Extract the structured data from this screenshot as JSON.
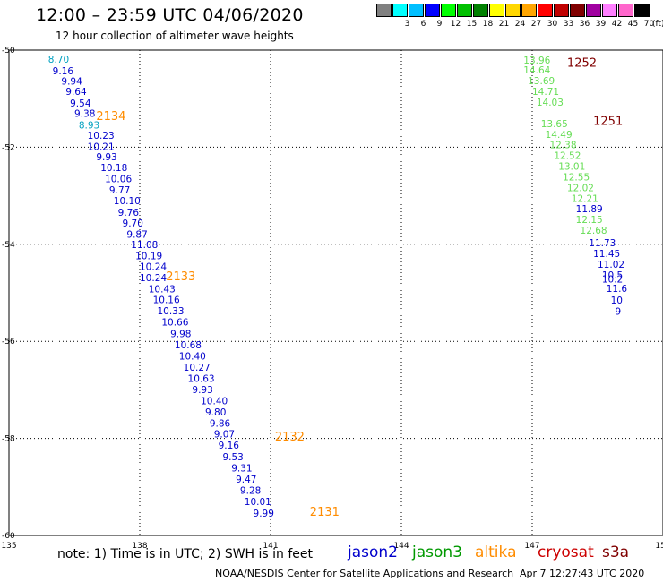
{
  "header": {
    "title": "12:00 – 23:59 UTC 04/06/2020",
    "subtitle": "12 hour collection of altimeter wave heights"
  },
  "scale": {
    "colors": [
      "#808080",
      "#00ffff",
      "#00bfff",
      "#0000ff",
      "#00ff00",
      "#00c000",
      "#008000",
      "#ffff00",
      "#ffd700",
      "#ffa500",
      "#ff0000",
      "#c00000",
      "#800000",
      "#a000a0",
      "#ff80ff",
      "#ff66cc",
      "#000000"
    ],
    "labels": [
      "",
      "3",
      "6",
      "9",
      "12",
      "15",
      "18",
      "21",
      "24",
      "27",
      "30",
      "33",
      "36",
      "39",
      "42",
      "45",
      "70"
    ],
    "unit": "(ft)"
  },
  "chart_data": {
    "type": "scatter",
    "title": "12:00 – 23:59 UTC 04/06/2020",
    "subtitle": "12 hour collection of altimeter wave heights",
    "xlabel": "",
    "ylabel": "",
    "xlim": [
      135,
      150
    ],
    "ylim": [
      -60,
      -50
    ],
    "grid": true,
    "x_ticks": [
      "135",
      "138",
      "141",
      "144",
      "147",
      "150"
    ],
    "x_tick_values": [
      135,
      138,
      141,
      144,
      147,
      150
    ],
    "y_ticks": [
      "-50",
      "-52",
      "-54",
      "-56",
      "-58",
      "-60"
    ],
    "y_tick_values": [
      -50,
      -52,
      -54,
      -56,
      -58,
      -60
    ],
    "colors": {
      "jason2": "#0000cc",
      "jason3": "#009900",
      "altika": "#ff8c00",
      "cryosat": "#cc0000",
      "s3a": "#800000",
      "light_blue": "#00a0c0",
      "light_green": "#66dd55"
    },
    "series": [
      {
        "name": "jason2",
        "color": "#0000cc",
        "points": [
          {
            "lon": 135.9,
            "lat": -50.18,
            "swh": "8.70",
            "c": "#00a0c0"
          },
          {
            "lon": 136.0,
            "lat": -50.42,
            "swh": "9.16"
          },
          {
            "lon": 136.2,
            "lat": -50.64,
            "swh": "9.94"
          },
          {
            "lon": 136.3,
            "lat": -50.85,
            "swh": "9.64"
          },
          {
            "lon": 136.4,
            "lat": -51.09,
            "swh": "9.54"
          },
          {
            "lon": 136.5,
            "lat": -51.3,
            "swh": "9.38"
          },
          {
            "lon": 136.6,
            "lat": -51.54,
            "swh": "8.93",
            "c": "#00a0c0"
          },
          {
            "lon": 136.8,
            "lat": -51.75,
            "swh": "10.23"
          },
          {
            "lon": 136.8,
            "lat": -51.98,
            "swh": "10.21"
          },
          {
            "lon": 137.0,
            "lat": -52.2,
            "swh": "9.93"
          },
          {
            "lon": 137.1,
            "lat": -52.42,
            "swh": "10.18"
          },
          {
            "lon": 137.2,
            "lat": -52.65,
            "swh": "10.06"
          },
          {
            "lon": 137.3,
            "lat": -52.88,
            "swh": "9.77"
          },
          {
            "lon": 137.4,
            "lat": -53.1,
            "swh": "10.10"
          },
          {
            "lon": 137.5,
            "lat": -53.34,
            "swh": "9.76"
          },
          {
            "lon": 137.6,
            "lat": -53.56,
            "swh": "9.70"
          },
          {
            "lon": 137.7,
            "lat": -53.79,
            "swh": "9.87"
          },
          {
            "lon": 137.8,
            "lat": -54.0,
            "swh": "11.08"
          },
          {
            "lon": 137.9,
            "lat": -54.23,
            "swh": "10.19"
          },
          {
            "lon": 138.0,
            "lat": -54.46,
            "swh": "10.24"
          },
          {
            "lon": 138.0,
            "lat": -54.69,
            "swh": "10.24"
          },
          {
            "lon": 138.2,
            "lat": -54.92,
            "swh": "10.43"
          },
          {
            "lon": 138.3,
            "lat": -55.14,
            "swh": "10.16"
          },
          {
            "lon": 138.4,
            "lat": -55.37,
            "swh": "10.33"
          },
          {
            "lon": 138.5,
            "lat": -55.6,
            "swh": "10.66"
          },
          {
            "lon": 138.7,
            "lat": -55.84,
            "swh": "9.98"
          },
          {
            "lon": 138.8,
            "lat": -56.07,
            "swh": "10.68"
          },
          {
            "lon": 138.9,
            "lat": -56.3,
            "swh": "10.40"
          },
          {
            "lon": 139.0,
            "lat": -56.53,
            "swh": "10.27"
          },
          {
            "lon": 139.1,
            "lat": -56.76,
            "swh": "10.63"
          },
          {
            "lon": 139.2,
            "lat": -56.99,
            "swh": "9.93"
          },
          {
            "lon": 139.4,
            "lat": -57.22,
            "swh": "10.40"
          },
          {
            "lon": 139.5,
            "lat": -57.45,
            "swh": "9.80"
          },
          {
            "lon": 139.6,
            "lat": -57.68,
            "swh": "9.86"
          },
          {
            "lon": 139.7,
            "lat": -57.91,
            "swh": "9.07"
          },
          {
            "lon": 139.8,
            "lat": -58.14,
            "swh": "9.16"
          },
          {
            "lon": 139.9,
            "lat": -58.38,
            "swh": "9.53"
          },
          {
            "lon": 140.1,
            "lat": -58.61,
            "swh": "9.31"
          },
          {
            "lon": 140.2,
            "lat": -58.84,
            "swh": "9.47"
          },
          {
            "lon": 140.3,
            "lat": -59.07,
            "swh": "9.28"
          },
          {
            "lon": 140.4,
            "lat": -59.3,
            "swh": "10.01"
          },
          {
            "lon": 140.6,
            "lat": -59.54,
            "swh": "9.99"
          }
        ]
      },
      {
        "name": "jason3",
        "color": "#009900",
        "points": [
          {
            "lon": 146.8,
            "lat": -50.2,
            "swh": "13.96",
            "c": "#66dd55"
          },
          {
            "lon": 146.8,
            "lat": -50.41,
            "swh": "14.64",
            "c": "#66dd55"
          },
          {
            "lon": 146.9,
            "lat": -50.63,
            "swh": "13.69",
            "c": "#66dd55"
          },
          {
            "lon": 147.0,
            "lat": -50.85,
            "swh": "14.71",
            "c": "#66dd55"
          },
          {
            "lon": 147.1,
            "lat": -51.07,
            "swh": "14.03",
            "c": "#66dd55"
          },
          {
            "lon": 147.2,
            "lat": -51.51,
            "swh": "13.65",
            "c": "#66dd55"
          },
          {
            "lon": 147.3,
            "lat": -51.73,
            "swh": "14.49",
            "c": "#66dd55"
          },
          {
            "lon": 147.4,
            "lat": -51.95,
            "swh": "12.38",
            "c": "#66dd55"
          },
          {
            "lon": 147.5,
            "lat": -52.17,
            "swh": "12.52",
            "c": "#66dd55"
          },
          {
            "lon": 147.6,
            "lat": -52.39,
            "swh": "13.01",
            "c": "#66dd55"
          },
          {
            "lon": 147.7,
            "lat": -52.61,
            "swh": "12.55",
            "c": "#66dd55"
          },
          {
            "lon": 147.8,
            "lat": -52.83,
            "swh": "12.02",
            "c": "#66dd55"
          },
          {
            "lon": 147.9,
            "lat": -53.05,
            "swh": "12.21",
            "c": "#66dd55"
          },
          {
            "lon": 148.0,
            "lat": -53.27,
            "swh": "11.89",
            "c": "#0000cc"
          },
          {
            "lon": 148.0,
            "lat": -53.49,
            "swh": "12.15",
            "c": "#66dd55"
          },
          {
            "lon": 148.1,
            "lat": -53.71,
            "swh": "12.68",
            "c": "#66dd55"
          },
          {
            "lon": 148.3,
            "lat": -53.97,
            "swh": "11.73",
            "c": "#0000cc"
          },
          {
            "lon": 148.4,
            "lat": -54.19,
            "swh": "11.45",
            "c": "#0000cc"
          },
          {
            "lon": 148.5,
            "lat": -54.41,
            "swh": "11.02",
            "c": "#0000cc"
          },
          {
            "lon": 148.6,
            "lat": -54.63,
            "swh": "10.5",
            "c": "#0000cc"
          },
          {
            "lon": 148.6,
            "lat": -54.71,
            "swh": "10.2",
            "c": "#0000cc"
          },
          {
            "lon": 148.7,
            "lat": -54.91,
            "swh": "11.6",
            "c": "#0000cc"
          },
          {
            "lon": 148.8,
            "lat": -55.15,
            "swh": "10",
            "c": "#0000cc"
          },
          {
            "lon": 148.9,
            "lat": -55.38,
            "swh": "9",
            "c": "#0000cc"
          }
        ]
      }
    ],
    "pass_labels": [
      {
        "text": "2134",
        "lon": 137.0,
        "lat": -51.35,
        "color": "#ff8c00"
      },
      {
        "text": "2133",
        "lon": 138.6,
        "lat": -54.65,
        "color": "#ff8c00"
      },
      {
        "text": "2132",
        "lon": 141.1,
        "lat": -57.95,
        "color": "#ff8c00"
      },
      {
        "text": "2131",
        "lon": 141.9,
        "lat": -59.5,
        "color": "#ff8c00"
      },
      {
        "text": "1252",
        "lon": 147.8,
        "lat": -50.25,
        "color": "#800000"
      },
      {
        "text": "1251",
        "lon": 148.4,
        "lat": -51.45,
        "color": "#800000"
      }
    ]
  },
  "legend": {
    "note": "note: 1) Time is in UTC; 2) SWH is in feet",
    "satellites": [
      {
        "name": "jason2",
        "color": "#0000cc"
      },
      {
        "name": "jason3",
        "color": "#009900"
      },
      {
        "name": "altika",
        "color": "#ff8c00"
      },
      {
        "name": "cryosat",
        "color": "#cc0000"
      },
      {
        "name": "s3a",
        "color": "#800000"
      }
    ]
  },
  "footer": {
    "credit": "NOAA/NESDIS Center for Satellite Applications and Research",
    "timestamp": "Apr  7 12:27:43 UTC 2020"
  }
}
